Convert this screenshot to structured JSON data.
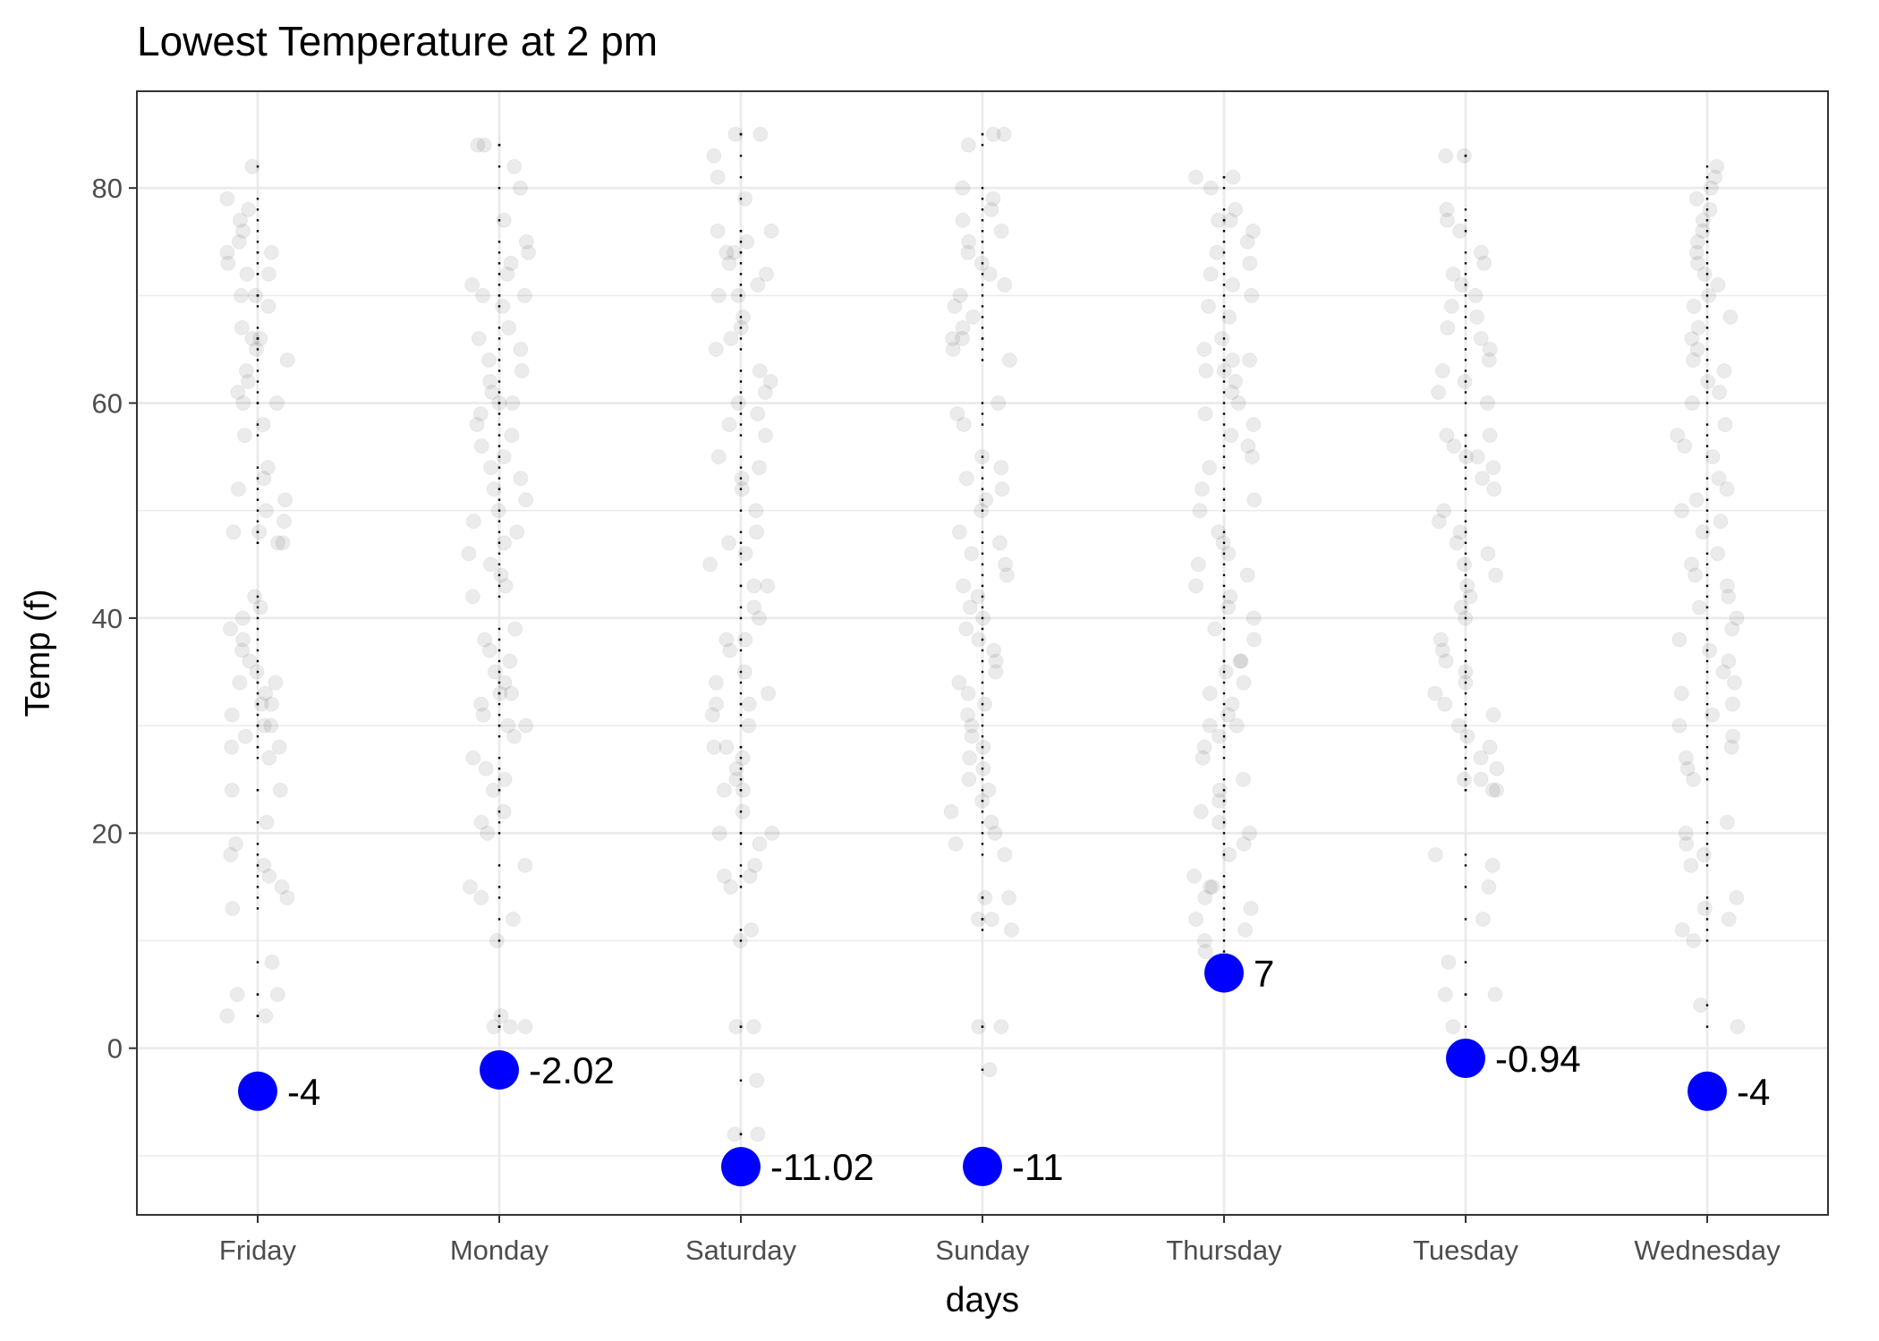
{
  "chart_data": {
    "type": "scatter",
    "title": "Lowest Temperature at 2 pm",
    "xlabel": "days",
    "ylabel": "Temp (f)",
    "categories": [
      "Friday",
      "Monday",
      "Saturday",
      "Sunday",
      "Thursday",
      "Tuesday",
      "Wednesday"
    ],
    "ylim": [
      -15.5,
      89
    ],
    "yticks": [
      0,
      20,
      40,
      60,
      80
    ],
    "yticks_labels": [
      "0",
      "20",
      "40",
      "60",
      "80"
    ],
    "grid": true,
    "legend": "none",
    "minimum_points": {
      "values": [
        -4,
        -2.02,
        -11.02,
        -11,
        7,
        -0.94,
        -4
      ],
      "labels": [
        "-4",
        "-2.02",
        "-11.02",
        "-11",
        "7",
        "-0.94",
        "-4"
      ],
      "color": "#0000ff"
    },
    "observations": {
      "color": "#000000",
      "opacity": 0.08,
      "series": [
        {
          "category": "Friday",
          "values": [
            82,
            79,
            78,
            77,
            76,
            75,
            74,
            74,
            73,
            72,
            72,
            70,
            70,
            69,
            67,
            66,
            66,
            65,
            64,
            63,
            62,
            61,
            60,
            60,
            58,
            57,
            54,
            53,
            52,
            51,
            50,
            49,
            48,
            48,
            47,
            47,
            42,
            41,
            40,
            39,
            38,
            37,
            36,
            35,
            34,
            34,
            33,
            32,
            32,
            31,
            30,
            30,
            29,
            28,
            28,
            27,
            24,
            24,
            21,
            19,
            18,
            17,
            16,
            15,
            14,
            13,
            8,
            5,
            5,
            3,
            3
          ]
        },
        {
          "category": "Monday",
          "values": [
            84,
            84,
            82,
            80,
            77,
            75,
            74,
            73,
            72,
            71,
            70,
            70,
            69,
            67,
            66,
            65,
            64,
            63,
            62,
            61,
            60,
            60,
            59,
            58,
            57,
            56,
            55,
            54,
            53,
            52,
            51,
            50,
            49,
            48,
            47,
            46,
            45,
            44,
            43,
            42,
            39,
            38,
            37,
            36,
            35,
            34,
            33,
            33,
            32,
            31,
            30,
            30,
            29,
            27,
            26,
            25,
            24,
            22,
            21,
            20,
            17,
            15,
            14,
            12,
            10,
            3,
            2,
            2,
            2
          ]
        },
        {
          "category": "Saturday",
          "values": [
            85,
            85,
            83,
            81,
            79,
            76,
            76,
            75,
            74,
            74,
            73,
            72,
            71,
            70,
            70,
            68,
            67,
            66,
            65,
            63,
            62,
            61,
            60,
            59,
            58,
            57,
            55,
            54,
            53,
            52,
            50,
            48,
            47,
            46,
            45,
            43,
            43,
            41,
            40,
            38,
            38,
            37,
            35,
            34,
            33,
            32,
            32,
            31,
            30,
            28,
            28,
            27,
            26,
            25,
            24,
            24,
            22,
            20,
            20,
            19,
            17,
            16,
            16,
            15,
            11,
            10,
            2,
            2,
            -3,
            -8,
            -8
          ]
        },
        {
          "category": "Sunday",
          "values": [
            85,
            85,
            84,
            80,
            79,
            78,
            77,
            76,
            75,
            74,
            73,
            72,
            71,
            70,
            69,
            68,
            67,
            66,
            66,
            65,
            64,
            60,
            59,
            58,
            55,
            54,
            53,
            52,
            51,
            50,
            48,
            47,
            46,
            45,
            44,
            43,
            42,
            41,
            40,
            39,
            38,
            37,
            36,
            35,
            34,
            33,
            32,
            31,
            30,
            29,
            28,
            27,
            26,
            25,
            24,
            23,
            22,
            21,
            20,
            19,
            18,
            14,
            14,
            12,
            12,
            11,
            2,
            2,
            -2
          ]
        },
        {
          "category": "Thursday",
          "values": [
            81,
            81,
            80,
            78,
            77,
            77,
            76,
            75,
            74,
            73,
            72,
            71,
            70,
            69,
            68,
            66,
            65,
            64,
            64,
            63,
            63,
            62,
            61,
            60,
            59,
            58,
            57,
            56,
            55,
            54,
            52,
            51,
            50,
            48,
            47,
            46,
            45,
            44,
            43,
            42,
            41,
            40,
            39,
            38,
            36,
            36,
            35,
            34,
            33,
            32,
            31,
            30,
            30,
            29,
            28,
            27,
            25,
            24,
            23,
            22,
            21,
            20,
            19,
            18,
            16,
            15,
            15,
            14,
            13,
            12,
            11,
            10,
            9,
            8
          ]
        },
        {
          "category": "Tuesday",
          "values": [
            83,
            83,
            78,
            77,
            76,
            74,
            73,
            72,
            71,
            70,
            69,
            68,
            67,
            66,
            65,
            64,
            63,
            62,
            61,
            60,
            57,
            57,
            56,
            55,
            55,
            54,
            53,
            52,
            50,
            49,
            48,
            47,
            46,
            45,
            44,
            43,
            42,
            41,
            40,
            38,
            37,
            36,
            35,
            34,
            33,
            32,
            31,
            30,
            29,
            28,
            27,
            26,
            25,
            25,
            24,
            24,
            18,
            17,
            15,
            12,
            8,
            5,
            5,
            2
          ]
        },
        {
          "category": "Wednesday",
          "values": [
            82,
            81,
            80,
            79,
            78,
            77,
            76,
            75,
            74,
            73,
            72,
            71,
            70,
            69,
            68,
            67,
            66,
            65,
            64,
            63,
            62,
            61,
            60,
            58,
            57,
            56,
            55,
            53,
            52,
            51,
            50,
            49,
            48,
            46,
            45,
            44,
            43,
            42,
            41,
            40,
            39,
            38,
            37,
            36,
            35,
            34,
            33,
            32,
            31,
            30,
            29,
            28,
            27,
            26,
            25,
            21,
            20,
            19,
            18,
            17,
            14,
            13,
            12,
            11,
            10,
            4,
            2
          ]
        }
      ]
    }
  }
}
